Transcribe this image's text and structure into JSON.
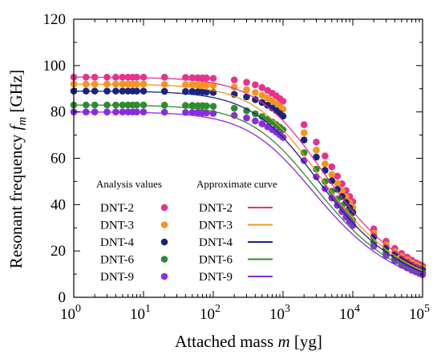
{
  "chart_data": {
    "type": "scatter",
    "xlabel_text": "Attached mass ",
    "xlabel_var": "m",
    "xlabel_unit": " [yg]",
    "ylabel_text": "Resonant frequency ",
    "ylabel_var": "f",
    "ylabel_sub": "m",
    "ylabel_unit": " [GHz]",
    "x_scale": "log",
    "xlim": [
      1,
      100000
    ],
    "ylim": [
      0,
      120
    ],
    "x_ticks": [
      {
        "base": "10",
        "exp": "0"
      },
      {
        "base": "10",
        "exp": "1"
      },
      {
        "base": "10",
        "exp": "2"
      },
      {
        "base": "10",
        "exp": "3"
      },
      {
        "base": "10",
        "exp": "4"
      },
      {
        "base": "10",
        "exp": "5"
      }
    ],
    "y_ticks": [
      "0",
      "20",
      "40",
      "60",
      "80",
      "100",
      "120"
    ],
    "grid": false,
    "legend_position": "bottom-left",
    "legend_header_points": "Analysis values",
    "legend_header_curves": "Approximate curve",
    "x_points": [
      1,
      1.5,
      2,
      3,
      4,
      5,
      6,
      7,
      8,
      10,
      20,
      40,
      50,
      60,
      70,
      80,
      100,
      200,
      300,
      400,
      500,
      600,
      700,
      800,
      900,
      1000,
      2000,
      3000,
      4000,
      5000,
      6000,
      7000,
      8000,
      9000,
      10000,
      20000,
      30000,
      40000,
      50000,
      60000,
      70000,
      80000,
      90000,
      100000
    ],
    "series": [
      {
        "name": "DNT-2",
        "color": "#e8318c",
        "f0": 95,
        "m0": 1800,
        "values": [
          95,
          95,
          95,
          95,
          95,
          95,
          95,
          95,
          95,
          95,
          95,
          94.9,
          94.8,
          94.8,
          94.7,
          94.7,
          94.5,
          93.8,
          92.8,
          91.7,
          90.5,
          89.3,
          88.1,
          86.9,
          85.7,
          84.6,
          74.5,
          67,
          61,
          56.3,
          52.3,
          49,
          46.1,
          43.5,
          41.3,
          29.5,
          24.2,
          21.1,
          18.9,
          17.3,
          16,
          15,
          14.2,
          13.5
        ]
      },
      {
        "name": "DNT-3",
        "color": "#f7941d",
        "f0": 92,
        "m0": 1600,
        "values": [
          92,
          92,
          92,
          92,
          92,
          92,
          92,
          92,
          92,
          92,
          91.9,
          91.8,
          91.8,
          91.7,
          91.6,
          91.6,
          91.4,
          90.7,
          89.6,
          88.4,
          87.2,
          86,
          84.8,
          83.6,
          82.4,
          81.2,
          71,
          63.5,
          57.6,
          53,
          49.2,
          46,
          43.3,
          40.9,
          38.8,
          27.7,
          22.7,
          19.7,
          17.6,
          16.1,
          14.9,
          13.9,
          13.2,
          12.5
        ]
      },
      {
        "name": "DNT-4",
        "color": "#1a237e",
        "f0": 89,
        "m0": 1500,
        "values": [
          89,
          89,
          89,
          89,
          89,
          89,
          89,
          89,
          89,
          89,
          88.9,
          88.8,
          88.8,
          88.7,
          88.7,
          88.6,
          88.4,
          87.6,
          86.5,
          85.3,
          84.1,
          82.9,
          81.7,
          80.5,
          79.3,
          78.2,
          67.9,
          60.5,
          54.8,
          50.3,
          46.6,
          43.5,
          40.9,
          38.6,
          36.6,
          26.1,
          21.3,
          18.5,
          16.5,
          15.1,
          13.9,
          13,
          12.3,
          11.7
        ]
      },
      {
        "name": "DNT-6",
        "color": "#2e8b2e",
        "f0": 83,
        "m0": 1400,
        "values": [
          83,
          83,
          83,
          83,
          83,
          83,
          83,
          83,
          83,
          83,
          82.9,
          82.8,
          82.8,
          82.7,
          82.7,
          82.6,
          82.4,
          81.6,
          80.5,
          79.2,
          78,
          76.8,
          75.7,
          74.5,
          73.4,
          72.3,
          62.4,
          55.3,
          50,
          45.8,
          42.4,
          39.6,
          37.1,
          35,
          33.2,
          23.6,
          19.3,
          16.7,
          14.9,
          13.6,
          12.6,
          11.8,
          11.1,
          10.6
        ]
      },
      {
        "name": "DNT-9",
        "color": "#8a2be2",
        "f0": 80,
        "m0": 1300,
        "values": [
          80,
          80,
          80,
          80,
          80,
          80,
          80,
          80,
          80,
          80,
          79.9,
          79.8,
          79.8,
          79.7,
          79.6,
          79.6,
          79.4,
          78.5,
          77.4,
          76.1,
          74.9,
          73.6,
          72.4,
          71.3,
          70.1,
          69,
          59,
          52,
          46.9,
          42.9,
          39.7,
          37,
          34.7,
          32.7,
          31,
          22,
          18,
          15.6,
          13.9,
          12.7,
          11.7,
          11,
          10.3,
          9.8
        ]
      }
    ]
  }
}
